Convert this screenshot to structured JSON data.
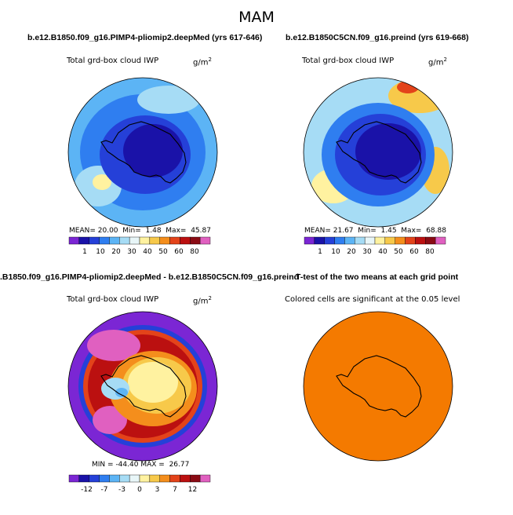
{
  "figure": {
    "title": "MAM"
  },
  "chart_data": [
    {
      "type": "heatmap",
      "title": "b.e12.B1850.f09_g16.PIMP4-pliomip2.deepMed (yrs 617-646)",
      "field": "Total grd-box cloud IWP",
      "units": "g/m",
      "units_exp": "2",
      "stats": {
        "mean_label": "MEAN=",
        "mean": "20.00",
        "min_label": "Min=",
        "min": "1.48",
        "max_label": "Max=",
        "max": "45.87"
      },
      "colorbar": {
        "colors": [
          "#7b26d4",
          "#1a12a8",
          "#2540d8",
          "#2f7ef0",
          "#5cb4f5",
          "#a6dcf5",
          "#e8f6f8",
          "#fff2a0",
          "#f7c94a",
          "#f48e1c",
          "#e3431a",
          "#bb1010",
          "#8a0b14",
          "#e060c0"
        ],
        "labels": [
          "1",
          "10",
          "20",
          "30",
          "40",
          "50",
          "60",
          "80"
        ]
      }
    },
    {
      "type": "heatmap",
      "title": "b.e12.B1850C5CN.f09_g16.preind (yrs 619-668)",
      "field": "Total grd-box cloud IWP",
      "units": "g/m",
      "units_exp": "2",
      "stats": {
        "mean_label": "MEAN=",
        "mean": "21.67",
        "min_label": "Min=",
        "min": "1.45",
        "max_label": "Max=",
        "max": "68.88"
      },
      "colorbar": {
        "colors": [
          "#7b26d4",
          "#1a12a8",
          "#2540d8",
          "#2f7ef0",
          "#5cb4f5",
          "#a6dcf5",
          "#e8f6f8",
          "#fff2a0",
          "#f7c94a",
          "#f48e1c",
          "#e3431a",
          "#bb1010",
          "#8a0b14",
          "#e060c0"
        ],
        "labels": [
          "1",
          "10",
          "20",
          "30",
          "40",
          "50",
          "60",
          "80"
        ]
      }
    },
    {
      "type": "heatmap",
      "title": ".B1850.f09_g16.PIMP4-pliomip2.deepMed - b.e12.B1850C5CN.f09_g16.preind",
      "field": "Total grd-box cloud IWP",
      "units": "g/m",
      "units_exp": "2",
      "stats": {
        "min_label": "MIN =",
        "min": "-44.40",
        "max_label": "MAX =",
        "max": "26.77"
      },
      "colorbar": {
        "colors": [
          "#7b26d4",
          "#1a12a8",
          "#2540d8",
          "#2f7ef0",
          "#5cb4f5",
          "#a6dcf5",
          "#e8f6f8",
          "#fff2a0",
          "#f7c94a",
          "#f48e1c",
          "#e3431a",
          "#bb1010",
          "#8a0b14",
          "#e060c0"
        ],
        "labels": [
          "-12",
          "-7",
          "-3",
          "0",
          "3",
          "7",
          "12"
        ]
      }
    },
    {
      "type": "heatmap",
      "title": "T-test of the two means at each grid point",
      "field": "Colored cells are significant at the 0.05 level",
      "fill_color": "#f47a00"
    }
  ]
}
